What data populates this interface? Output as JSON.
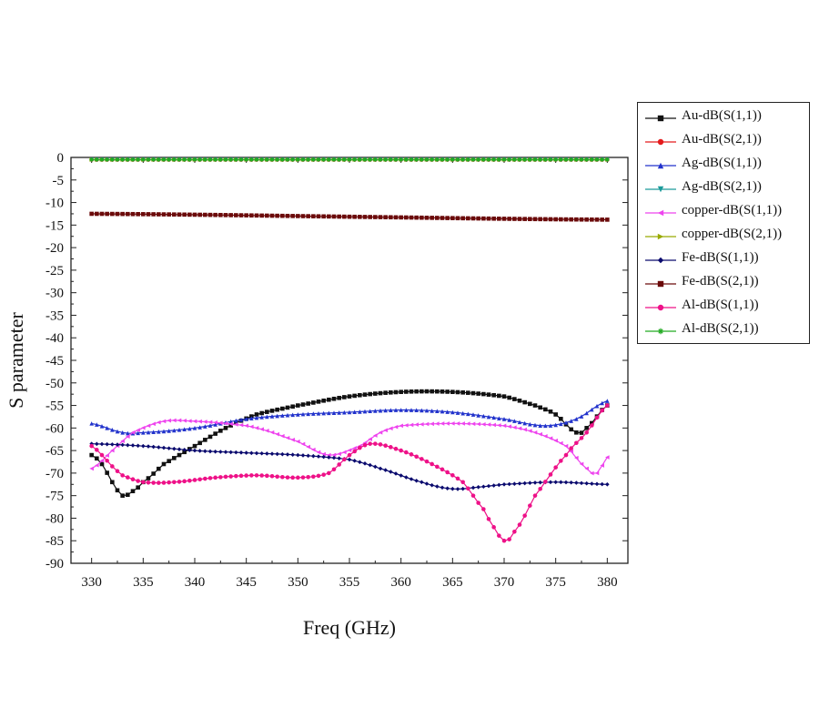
{
  "chart_data": {
    "type": "line",
    "xlabel": "Freq (GHz)",
    "ylabel": "S parameter",
    "xlim": [
      328,
      382
    ],
    "ylim": [
      -90,
      0
    ],
    "xticks": [
      330,
      335,
      340,
      345,
      350,
      355,
      360,
      365,
      370,
      375,
      380
    ],
    "yticks": [
      0,
      -5,
      -10,
      -15,
      -20,
      -25,
      -30,
      -35,
      -40,
      -45,
      -50,
      -55,
      -60,
      -65,
      -70,
      -75,
      -80,
      -85,
      -90
    ],
    "legend_position": "right",
    "series": [
      {
        "name": "Au-dB(S(1,1))",
        "color": "#111111",
        "marker": "square",
        "x": [
          330,
          331,
          332,
          333,
          334,
          335,
          337,
          340,
          343,
          346,
          350,
          355,
          360,
          365,
          370,
          373,
          375,
          377,
          378,
          380
        ],
        "y": [
          -66,
          -68,
          -72,
          -75,
          -74,
          -72,
          -68,
          -64,
          -60,
          -57,
          -55,
          -53,
          -52,
          -52,
          -53,
          -55,
          -57,
          -61,
          -60,
          -55
        ]
      },
      {
        "name": "Au-dB(S(2,1))",
        "color": "#e41a1c",
        "marker": "circle",
        "x": [
          330,
          380
        ],
        "y": [
          -0.5,
          -0.5
        ]
      },
      {
        "name": "Ag-dB(S(1,1))",
        "color": "#2233cc",
        "marker": "triangle-up",
        "x": [
          330,
          333,
          335,
          340,
          345,
          350,
          355,
          360,
          365,
          370,
          374,
          377,
          380
        ],
        "y": [
          -59,
          -61,
          -61,
          -60,
          -58,
          -57,
          -56.5,
          -56,
          -56.5,
          -58,
          -59.5,
          -58,
          -54
        ]
      },
      {
        "name": "Ag-dB(S(2,1))",
        "color": "#1a9a9a",
        "marker": "triangle-down",
        "x": [
          330,
          380
        ],
        "y": [
          -0.5,
          -0.5
        ]
      },
      {
        "name": "copper-dB(S(1,1))",
        "color": "#ee44ee",
        "marker": "triangle-left",
        "x": [
          330,
          332,
          334,
          337,
          340,
          343,
          346,
          350,
          353,
          356,
          358,
          360,
          365,
          370,
          373,
          376,
          378,
          379,
          380
        ],
        "y": [
          -69,
          -65,
          -61,
          -58.5,
          -58.5,
          -59,
          -60,
          -63,
          -66,
          -64,
          -61,
          -59.5,
          -59,
          -59.5,
          -61,
          -64,
          -69,
          -70,
          -66.5
        ]
      },
      {
        "name": "copper-dB(S(2,1))",
        "color": "#99aa00",
        "marker": "triangle-right",
        "x": [
          330,
          380
        ],
        "y": [
          -0.5,
          -0.5
        ]
      },
      {
        "name": "Fe-dB(S(1,1))",
        "color": "#0a0a6e",
        "marker": "diamond",
        "x": [
          330,
          335,
          340,
          345,
          350,
          355,
          358,
          362,
          365,
          368,
          370,
          375,
          380
        ],
        "y": [
          -63.5,
          -64,
          -65,
          -65.5,
          -66,
          -67,
          -69,
          -72,
          -73.5,
          -73,
          -72.5,
          -72,
          -72.5
        ]
      },
      {
        "name": "Fe-dB(S(2,1))",
        "color": "#6b0a0a",
        "marker": "square",
        "x": [
          330,
          340,
          350,
          360,
          370,
          380
        ],
        "y": [
          -12.5,
          -12.7,
          -13,
          -13.3,
          -13.6,
          -13.8
        ]
      },
      {
        "name": "Al-dB(S(1,1))",
        "color": "#ee1188",
        "marker": "circle",
        "x": [
          330,
          331,
          332,
          333,
          335,
          338,
          342,
          346,
          350,
          353,
          355,
          357,
          360,
          363,
          366,
          368,
          369,
          370,
          371,
          373,
          376,
          378,
          380
        ],
        "y": [
          -64,
          -66,
          -68.5,
          -70.5,
          -72,
          -72,
          -71,
          -70.5,
          -71,
          -70,
          -66,
          -63.5,
          -65,
          -68,
          -72,
          -78,
          -82,
          -85,
          -83,
          -75,
          -66,
          -61,
          -55
        ]
      },
      {
        "name": "Al-dB(S(2,1))",
        "color": "#22aa22",
        "marker": "star",
        "x": [
          330,
          380
        ],
        "y": [
          -0.5,
          -0.5
        ]
      }
    ]
  }
}
